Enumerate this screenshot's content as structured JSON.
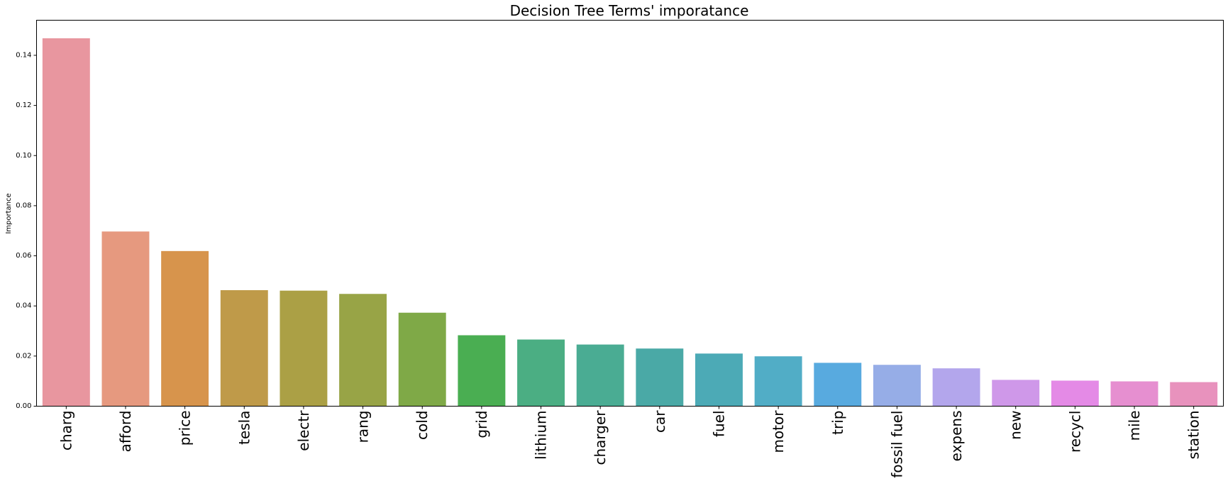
{
  "chart_data": {
    "type": "bar",
    "title": "Decision Tree Terms' imporatance",
    "xlabel": "",
    "ylabel": "Importance",
    "ylim": [
      0,
      0.154
    ],
    "yticks": [
      "0.00",
      "0.02",
      "0.04",
      "0.06",
      "0.08",
      "0.10",
      "0.12",
      "0.14"
    ],
    "grid": false,
    "categories": [
      "charg",
      "afford",
      "price",
      "tesla",
      "electr",
      "rang",
      "cold",
      "grid",
      "lithium",
      "charger",
      "car",
      "fuel",
      "motor",
      "trip",
      "fossil fuel",
      "expens",
      "new",
      "recycl",
      "mile",
      "station"
    ],
    "values": [
      0.1468,
      0.0697,
      0.0619,
      0.0463,
      0.0461,
      0.0448,
      0.0373,
      0.0283,
      0.0266,
      0.0246,
      0.023,
      0.021,
      0.0199,
      0.0173,
      0.0165,
      0.0151,
      0.0105,
      0.0102,
      0.0099,
      0.0096
    ],
    "colors": [
      "#e8969f",
      "#e6997f",
      "#d7944c",
      "#bf9a49",
      "#aba045",
      "#98a446",
      "#7fa947",
      "#4aae52",
      "#4bae83",
      "#4aac93",
      "#4aa9a6",
      "#4caab6",
      "#51adc6",
      "#58aadf",
      "#96ade7",
      "#b3a6ec",
      "#cf98e9",
      "#e48ae6",
      "#e68fd0",
      "#e892bd"
    ]
  }
}
